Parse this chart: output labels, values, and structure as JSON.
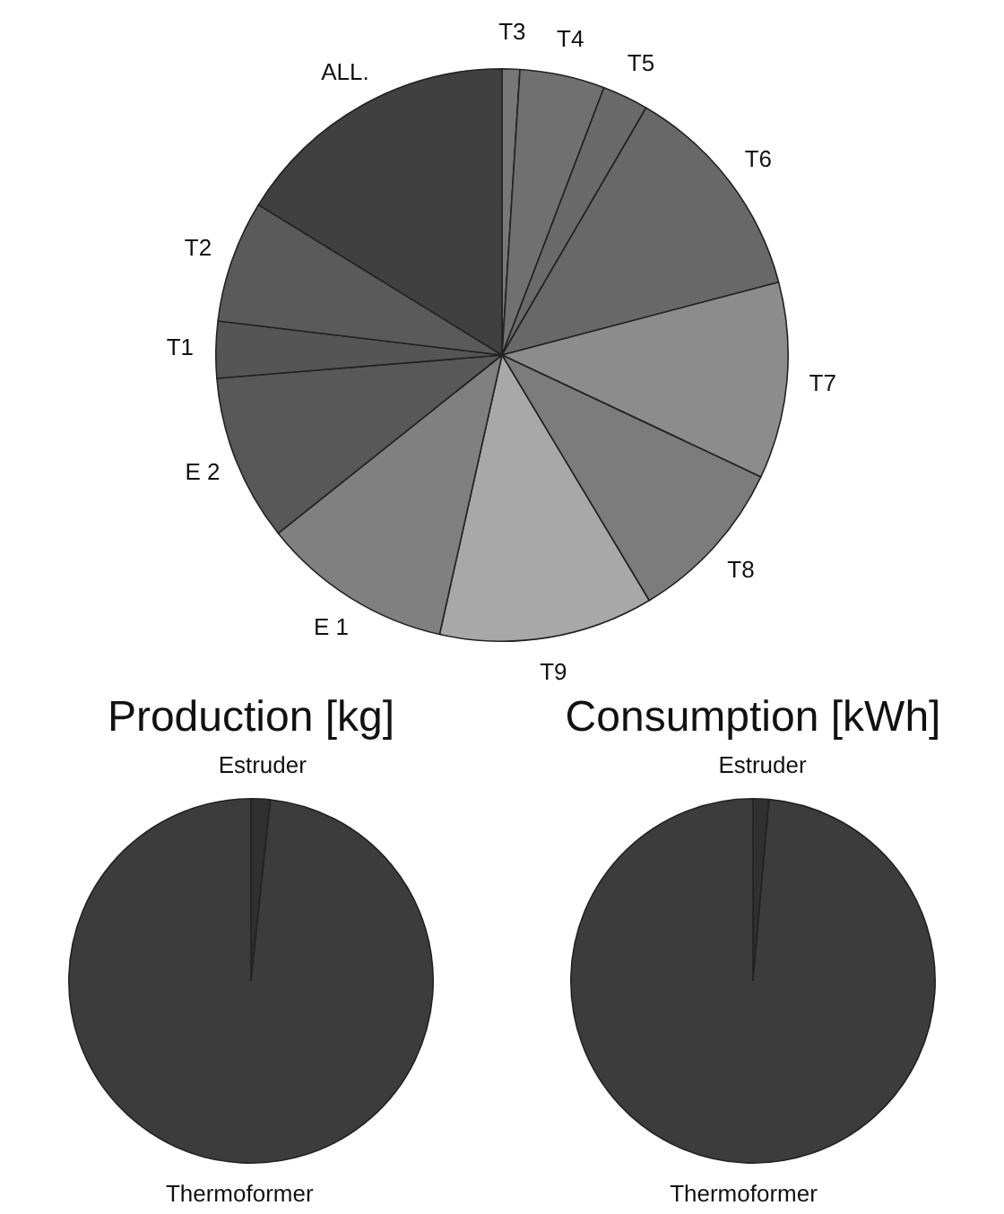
{
  "chart_data": [
    {
      "type": "pie",
      "categories": [
        "T3",
        "T4",
        "T5",
        "T6",
        "T7",
        "T8",
        "T9",
        "E 1",
        "E 2",
        "T1",
        "T2",
        "ALL."
      ],
      "values": [
        1.0,
        4.8,
        2.6,
        12.5,
        11.1,
        9.4,
        12.1,
        10.8,
        9.4,
        3.2,
        6.9,
        16.2
      ],
      "colors": [
        "#777777",
        "#707070",
        "#6a6a6a",
        "#686868",
        "#8c8c8c",
        "#7c7c7c",
        "#a8a8a8",
        "#808080",
        "#585858",
        "#555555",
        "#5a5a5a",
        "#404040"
      ],
      "legend": false
    },
    {
      "type": "pie",
      "title": "Production [kg]",
      "categories": [
        "Estruder",
        "Thermoformer"
      ],
      "values": [
        1.7,
        98.3
      ],
      "colors": [
        "#303030",
        "#3c3c3c"
      ],
      "legend": false
    },
    {
      "type": "pie",
      "title": "Consumption [kWh]",
      "categories": [
        "Estruder",
        "Thermoformer"
      ],
      "values": [
        1.4,
        98.6
      ],
      "colors": [
        "#303030",
        "#3c3c3c"
      ],
      "legend": false
    }
  ]
}
